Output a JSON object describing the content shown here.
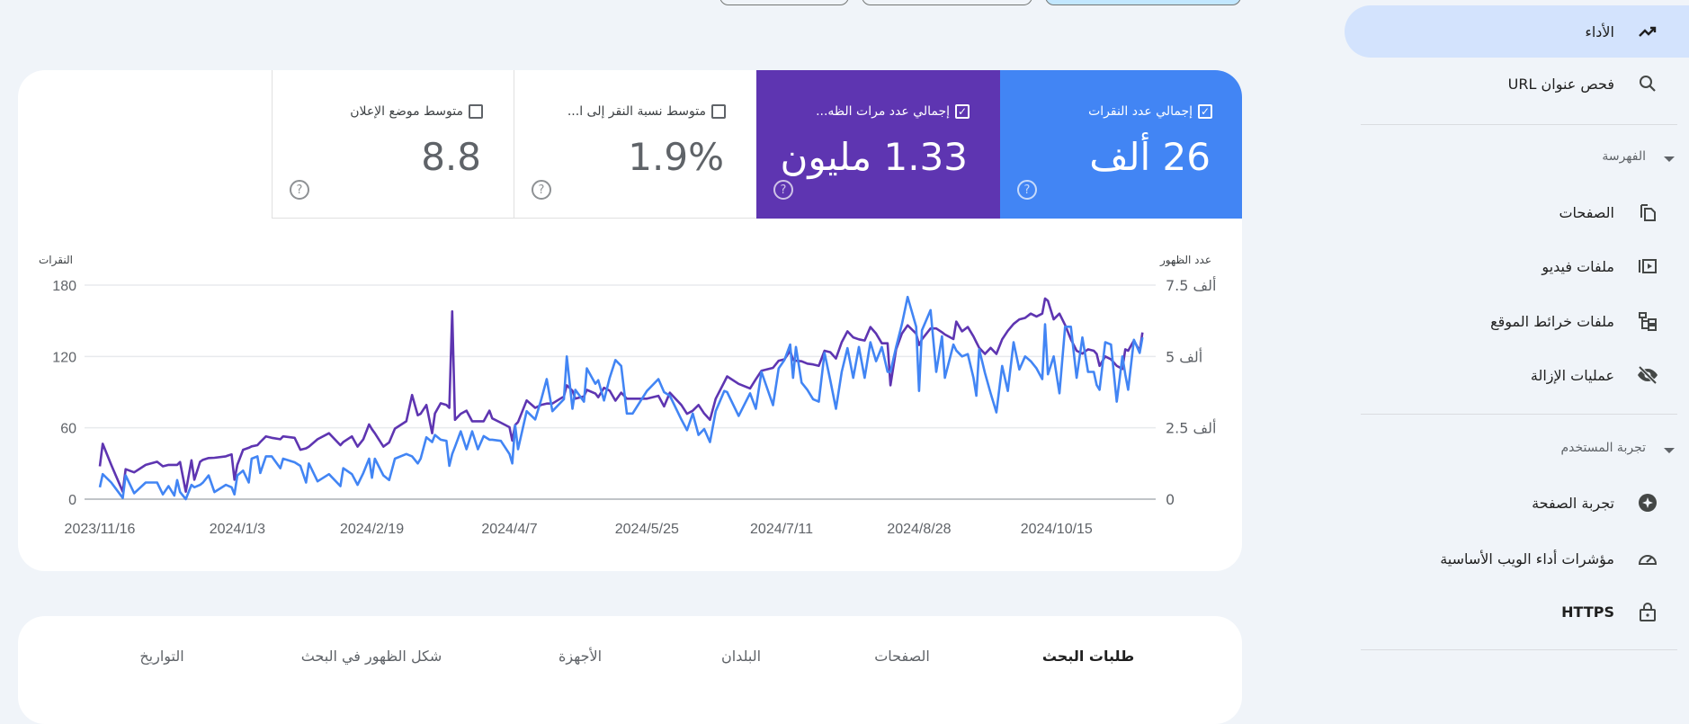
{
  "header": {
    "buttons": [
      "",
      "",
      ""
    ]
  },
  "metrics": [
    {
      "label": "إجمالي عدد النقرات",
      "value": "26 ألف",
      "checked": true,
      "color": "#4285f4"
    },
    {
      "label": "إجمالي عدد مرات الظه...",
      "value": "1.33 مليون",
      "checked": true,
      "color": "#5e35b1"
    },
    {
      "label": "متوسط نسبة النقر إلى ا...",
      "value": "1.9%",
      "checked": false
    },
    {
      "label": "متوسط موضع الإعلان",
      "value": "8.8",
      "checked": false
    }
  ],
  "help_glyph": "?",
  "check_glyph": "✓",
  "chart_data": {
    "type": "line",
    "left_axis": {
      "title": "النقرات",
      "ticks": [
        "0",
        "60",
        "120",
        "180"
      ],
      "ylim": [
        0,
        180
      ]
    },
    "right_axis": {
      "title": "عدد الظهور",
      "ticks": [
        "0",
        "2.5 ألف",
        "5 ألف",
        "7.5 ألف"
      ],
      "ylim": [
        0,
        7.5
      ]
    },
    "x_ticks": [
      "2023/11/16",
      "2024/1/3",
      "2024/2/19",
      "2024/4/7",
      "2024/5/25",
      "2024/7/11",
      "2024/8/28",
      "2024/10/15"
    ],
    "xlim": [
      "2023/11/16",
      "2024/11/15"
    ],
    "grid": true,
    "series": [
      {
        "name": "النقرات",
        "axis": "left",
        "color": "#4285f4"
      },
      {
        "name": "عدد الظهور",
        "axis": "right",
        "color": "#5e35b1"
      }
    ],
    "points": [
      [
        "2023/11/16",
        10,
        1.15
      ],
      [
        "2023/11/17",
        21,
        1.94
      ],
      [
        "2023/11/20",
        14,
        1.2
      ],
      [
        "2023/11/24",
        1,
        0.26
      ],
      [
        "2023/11/25",
        20,
        1.05
      ],
      [
        "2023/11/28",
        5,
        0.94
      ],
      [
        "2023/12/2",
        14,
        1.2
      ],
      [
        "2023/12/6",
        14,
        1.31
      ],
      [
        "2023/12/8",
        4,
        1.15
      ],
      [
        "2023/12/10",
        11,
        1.2
      ],
      [
        "2023/12/12",
        3,
        1.2
      ],
      [
        "2023/12/13",
        16,
        1.2
      ],
      [
        "2023/12/14",
        6,
        1.3
      ],
      [
        "2023/12/16",
        0,
        0.26
      ],
      [
        "2023/12/18",
        12,
        1.36
      ],
      [
        "2023/12/19",
        10,
        0.68
      ],
      [
        "2023/12/21",
        12,
        1.31
      ],
      [
        "2023/12/22",
        14,
        1.38
      ],
      [
        "2023/12/24",
        20,
        1.44
      ],
      [
        "2023/12/26",
        6,
        1.45
      ],
      [
        "2023/12/30",
        12,
        1.5
      ],
      [
        "2024/1/1",
        10,
        1.57
      ],
      [
        "2024/1/2",
        4,
        0.68
      ],
      [
        "2024/1/3",
        20,
        1.2
      ],
      [
        "2024/1/5",
        24,
        1.73
      ],
      [
        "2024/1/7",
        14,
        1.8
      ],
      [
        "2024/1/8",
        34,
        1.85
      ],
      [
        "2024/1/10",
        36,
        1.89
      ],
      [
        "2024/1/11",
        22,
        2.0
      ],
      [
        "2024/1/13",
        36,
        2.2
      ],
      [
        "2024/1/15",
        36,
        2.15
      ],
      [
        "2024/1/18",
        26,
        2.1
      ],
      [
        "2024/1/19",
        34,
        2.2
      ],
      [
        "2024/1/23",
        31,
        2.15
      ],
      [
        "2024/1/25",
        28,
        1.73
      ],
      [
        "2024/1/27",
        14,
        1.78
      ],
      [
        "2024/1/28",
        30,
        1.84
      ],
      [
        "2024/1/31",
        15,
        2.1
      ],
      [
        "2024/2/4",
        21,
        2.31
      ],
      [
        "2024/2/8",
        11,
        1.89
      ],
      [
        "2024/2/9",
        26,
        2.0
      ],
      [
        "2024/2/12",
        21,
        2.2
      ],
      [
        "2024/2/14",
        12,
        1.84
      ],
      [
        "2024/2/16",
        22,
        2.1
      ],
      [
        "2024/2/18",
        34,
        2.62
      ],
      [
        "2024/2/19",
        18,
        2.45
      ],
      [
        "2024/2/20",
        34,
        2.31
      ],
      [
        "2024/2/23",
        20,
        1.84
      ],
      [
        "2024/2/25",
        16,
        1.99
      ],
      [
        "2024/2/27",
        34,
        2.47
      ],
      [
        "2024/3/2",
        38,
        2.73
      ],
      [
        "2024/3/4",
        36,
        3.65
      ],
      [
        "2024/3/6",
        30,
        2.94
      ],
      [
        "2024/3/7",
        34,
        2.99
      ],
      [
        "2024/3/9",
        52,
        3.3
      ],
      [
        "2024/3/11",
        48,
        2.31
      ],
      [
        "2024/3/12",
        54,
        3.0
      ],
      [
        "2024/3/14",
        50,
        3.36
      ],
      [
        "2024/3/16",
        49,
        3.3
      ],
      [
        "2024/3/17",
        28,
        3.2
      ],
      [
        "2024/3/18",
        38,
        6.58
      ],
      [
        "2024/3/19",
        44,
        2.78
      ],
      [
        "2024/3/21",
        57,
        2.99
      ],
      [
        "2024/3/23",
        42,
        3.1
      ],
      [
        "2024/3/25",
        57,
        2.73
      ],
      [
        "2024/3/27",
        42,
        2.73
      ],
      [
        "2024/3/29",
        53,
        2.73
      ],
      [
        "2024/3/31",
        50,
        3.1
      ],
      [
        "2024/4/1",
        50,
        2.83
      ],
      [
        "2024/4/4",
        49,
        2.68
      ],
      [
        "2024/4/7",
        38,
        2.52
      ],
      [
        "2024/4/8",
        30,
        2.05
      ],
      [
        "2024/4/9",
        62,
        2.6
      ],
      [
        "2024/4/10",
        42,
        2.7
      ],
      [
        "2024/4/13",
        74,
        3.46
      ],
      [
        "2024/4/16",
        67,
        3.2
      ],
      [
        "2024/4/18",
        83,
        3.3
      ],
      [
        "2024/4/20",
        101,
        3.35
      ],
      [
        "2024/4/22",
        74,
        3.35
      ],
      [
        "2024/4/26",
        84,
        3.6
      ],
      [
        "2024/4/27",
        120,
        3.99
      ],
      [
        "2024/4/29",
        76,
        3.8
      ],
      [
        "2024/4/30",
        92,
        3.52
      ],
      [
        "2024/5/3",
        82,
        3.6
      ],
      [
        "2024/5/4",
        110,
        3.83
      ],
      [
        "2024/5/7",
        97,
        3.7
      ],
      [
        "2024/5/8",
        100,
        3.57
      ],
      [
        "2024/5/10",
        83,
        3.9
      ],
      [
        "2024/5/12",
        102,
        3.8
      ],
      [
        "2024/5/14",
        117,
        3.45
      ],
      [
        "2024/5/16",
        112,
        3.73
      ],
      [
        "2024/5/18",
        72,
        3.52
      ],
      [
        "2024/5/20",
        72,
        3.52
      ],
      [
        "2024/5/25",
        91,
        3.52
      ],
      [
        "2024/5/29",
        101,
        3.62
      ],
      [
        "2024/5/31",
        90,
        3.25
      ],
      [
        "2024/6/2",
        87,
        3.73
      ],
      [
        "2024/6/6",
        67,
        3.3
      ],
      [
        "2024/6/8",
        58,
        2.99
      ],
      [
        "2024/6/10",
        72,
        3.1
      ],
      [
        "2024/6/12",
        54,
        3.3
      ],
      [
        "2024/6/14",
        59,
        3.0
      ],
      [
        "2024/6/16",
        48,
        2.78
      ],
      [
        "2024/6/18",
        74,
        3.52
      ],
      [
        "2024/6/21",
        91,
        4.1
      ],
      [
        "2024/6/22",
        90,
        4.3
      ],
      [
        "2024/6/26",
        70,
        4.04
      ],
      [
        "2024/6/30",
        89,
        3.88
      ],
      [
        "2024/7/2",
        76,
        4.2
      ],
      [
        "2024/7/4",
        107,
        4.5
      ],
      [
        "2024/7/8",
        79,
        4.6
      ],
      [
        "2024/7/10",
        110,
        4.85
      ],
      [
        "2024/7/12",
        117,
        4.9
      ],
      [
        "2024/7/14",
        130,
        5.2
      ],
      [
        "2024/7/15",
        102,
        4.88
      ],
      [
        "2024/7/16",
        128,
        4.85
      ],
      [
        "2024/7/18",
        98,
        4.83
      ],
      [
        "2024/7/20",
        92,
        4.75
      ],
      [
        "2024/7/22",
        84,
        4.72
      ],
      [
        "2024/7/24",
        82,
        4.67
      ],
      [
        "2024/7/26",
        123,
        5.2
      ],
      [
        "2024/7/28",
        100,
        5.15
      ],
      [
        "2024/7/30",
        76,
        4.93
      ],
      [
        "2024/8/1",
        107,
        5.5
      ],
      [
        "2024/8/3",
        127,
        5.88
      ],
      [
        "2024/8/5",
        102,
        5.67
      ],
      [
        "2024/8/7",
        128,
        5.6
      ],
      [
        "2024/8/9",
        102,
        5.56
      ],
      [
        "2024/8/11",
        132,
        6.03
      ],
      [
        "2024/8/13",
        116,
        5.8
      ],
      [
        "2024/8/15",
        128,
        5.46
      ],
      [
        "2024/8/17",
        107,
        5.46
      ],
      [
        "2024/8/18",
        107,
        3.99
      ],
      [
        "2024/8/20",
        128,
        5.25
      ],
      [
        "2024/8/22",
        147,
        5.8
      ],
      [
        "2024/8/24",
        170,
        6.09
      ],
      [
        "2024/8/27",
        145,
        5.8
      ],
      [
        "2024/8/28",
        91,
        5.4
      ],
      [
        "2024/8/29",
        142,
        5.6
      ],
      [
        "2024/9/1",
        159,
        5.98
      ],
      [
        "2024/9/3",
        107,
        5.98
      ],
      [
        "2024/9/5",
        137,
        5.85
      ],
      [
        "2024/9/6",
        102,
        5.77
      ],
      [
        "2024/9/9",
        130,
        5.61
      ],
      [
        "2024/9/10",
        125,
        6.22
      ],
      [
        "2024/9/12",
        120,
        5.88
      ],
      [
        "2024/9/14",
        122,
        6.03
      ],
      [
        "2024/9/16",
        102,
        5.7
      ],
      [
        "2024/9/17",
        87,
        5.5
      ],
      [
        "2024/9/18",
        126,
        5.3
      ],
      [
        "2024/9/20",
        106,
        5.09
      ],
      [
        "2024/9/22",
        89,
        5.3
      ],
      [
        "2024/9/24",
        73,
        5.09
      ],
      [
        "2024/9/26",
        112,
        5.6
      ],
      [
        "2024/9/28",
        91,
        5.9
      ],
      [
        "2024/9/30",
        132,
        6.14
      ],
      [
        "2024/10/2",
        109,
        6.3
      ],
      [
        "2024/10/4",
        120,
        6.35
      ],
      [
        "2024/10/6",
        116,
        6.5
      ],
      [
        "2024/10/8",
        110,
        6.4
      ],
      [
        "2024/10/10",
        101,
        6.5
      ],
      [
        "2024/10/11",
        147,
        7.03
      ],
      [
        "2024/10/12",
        105,
        6.95
      ],
      [
        "2024/10/14",
        120,
        6.3
      ],
      [
        "2024/10/16",
        89,
        6.5
      ],
      [
        "2024/10/18",
        145,
        6.1
      ],
      [
        "2024/10/20",
        145,
        5.6
      ],
      [
        "2024/10/22",
        102,
        5.2
      ],
      [
        "2024/10/24",
        136,
        5.1
      ],
      [
        "2024/10/26",
        107,
        5.25
      ],
      [
        "2024/10/28",
        107,
        5.2
      ],
      [
        "2024/10/29",
        96,
        5.09
      ],
      [
        "2024/10/30",
        92,
        4.67
      ],
      [
        "2024/11/1",
        132,
        5.0
      ],
      [
        "2024/11/3",
        130,
        4.9
      ],
      [
        "2024/11/5",
        82,
        4.67
      ],
      [
        "2024/11/7",
        120,
        4.56
      ],
      [
        "2024/11/8",
        105,
        5.25
      ],
      [
        "2024/11/9",
        92,
        5.2
      ],
      [
        "2024/11/11",
        134,
        5.56
      ],
      [
        "2024/11/13",
        123,
        5.19
      ],
      [
        "2024/11/14",
        136,
        5.84
      ]
    ]
  },
  "bottom_tabs": [
    "طلبات البحث",
    "الصفحات",
    "البلدان",
    "الأجهزة",
    "شكل الظهور في البحث",
    "التواريخ"
  ],
  "sidebar": {
    "items": [
      {
        "label": "الأداء",
        "icon": "trending-up-icon",
        "active": true
      },
      {
        "label": "فحص عنوان URL",
        "icon": "search-icon"
      },
      {
        "label": "الصفحات",
        "icon": "pages-icon"
      },
      {
        "label": "ملفات فيديو",
        "icon": "video-icon"
      },
      {
        "label": "ملفات خرائط الموقع",
        "icon": "sitemap-icon"
      },
      {
        "label": "عمليات الإزالة",
        "icon": "eye-off-icon"
      },
      {
        "label": "تجربة الصفحة",
        "icon": "page-experience-icon"
      },
      {
        "label": "مؤشرات أداء الويب الأساسية",
        "icon": "gauge-icon"
      },
      {
        "label": "HTTPS",
        "icon": "lock-icon"
      }
    ],
    "sections": [
      "الفهرسة",
      "تجربة المستخدم"
    ]
  }
}
